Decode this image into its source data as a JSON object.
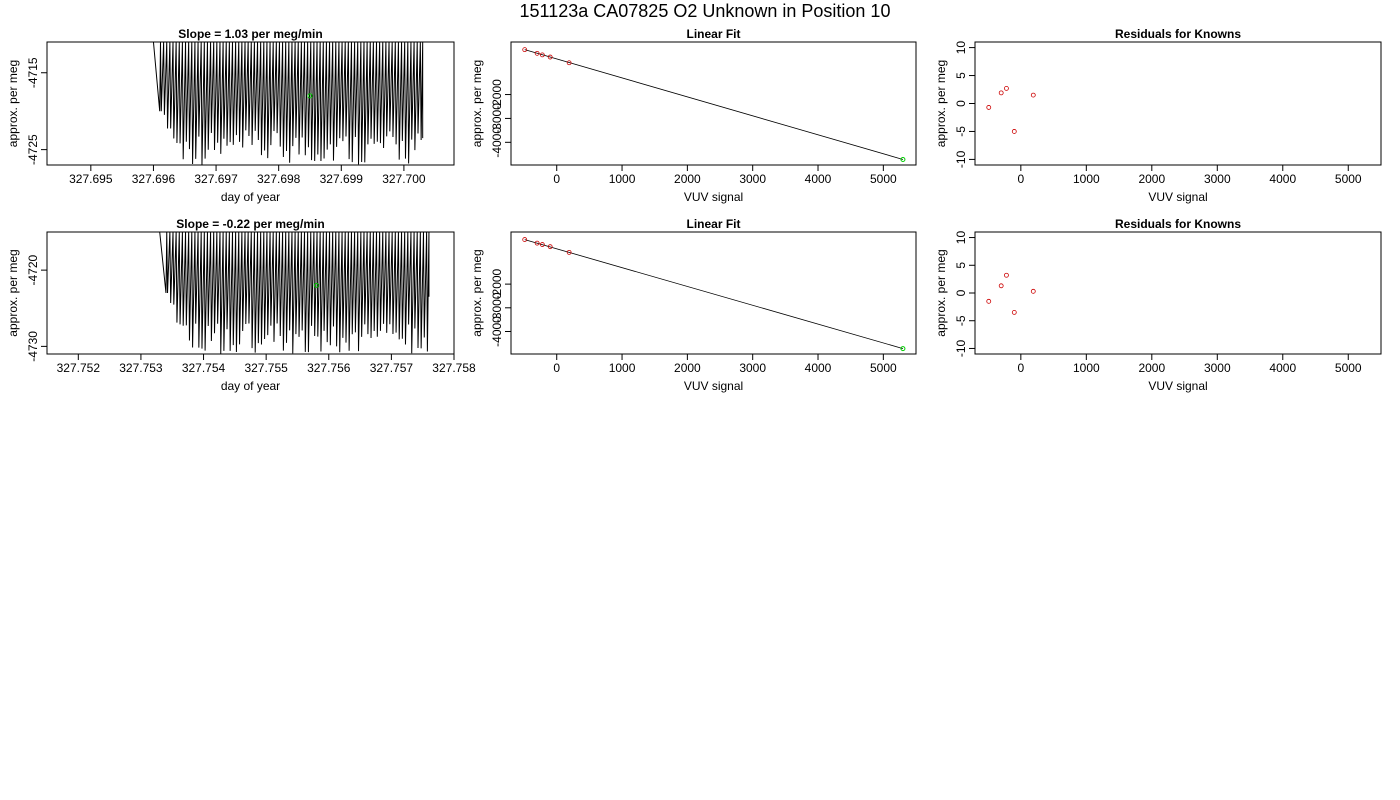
{
  "figure": {
    "title": "151123a     CA07825   O2 Unknown in Position  10"
  },
  "chart_data": [
    {
      "id": "row1-timeseries",
      "type": "line",
      "title": "Slope =  1.03  per meg/min",
      "xlabel": "day of year",
      "ylabel": "approx. per meg",
      "xlim": [
        327.6943,
        327.7008
      ],
      "ylim": [
        -4727,
        -4711
      ],
      "x_ticks": [
        327.695,
        327.696,
        327.697,
        327.698,
        327.699,
        327.7
      ],
      "x_tick_labels": [
        "327.695",
        "327.696",
        "327.697",
        "327.698",
        "327.699",
        "327.700"
      ],
      "y_ticks": [
        -4715,
        -4725
      ],
      "y_tick_labels": [
        "-4715",
        "-4725"
      ],
      "series": [
        {
          "kind": "oscillating",
          "x_start": 327.696,
          "x_end": 327.7003,
          "x_first_low": 327.6961,
          "y_top": -4711,
          "y_low_start": -4720,
          "y_low_range": [
            -4727,
            -4722.5
          ],
          "y_end": -4723.5,
          "cycles": 84
        }
      ],
      "highlight_point": {
        "x": 327.6985,
        "y": -4718
      },
      "colors": {
        "line": "#000000",
        "highlight": "#00cc00"
      }
    },
    {
      "id": "row1-linearfit",
      "type": "scatter",
      "title": "Linear Fit",
      "xlabel": "VUV signal",
      "ylabel": "approx. per meg",
      "xlim": [
        -700,
        5500
      ],
      "ylim": [
        -4950,
        200
      ],
      "x_ticks": [
        0,
        1000,
        2000,
        3000,
        4000,
        5000
      ],
      "x_tick_labels": [
        "0",
        "1000",
        "2000",
        "3000",
        "4000",
        "5000"
      ],
      "y_ticks": [
        -2000,
        -3000,
        -4000
      ],
      "y_tick_labels": [
        "-2000",
        "-3000",
        "-4000"
      ],
      "known_points": [
        {
          "x": -490,
          "y": -120
        },
        {
          "x": -300,
          "y": -275
        },
        {
          "x": -220,
          "y": -340
        },
        {
          "x": -100,
          "y": -430
        },
        {
          "x": 190,
          "y": -670
        }
      ],
      "unknown_point": {
        "x": 5300,
        "y": -4718
      },
      "fit_line": [
        [
          -490,
          -120
        ],
        [
          5300,
          -4718
        ]
      ],
      "colors": {
        "known": "#cc0000",
        "unknown": "#00cc00",
        "line": "#000000"
      }
    },
    {
      "id": "row1-residuals",
      "type": "scatter",
      "title": "Residuals for Knowns",
      "xlabel": "VUV signal",
      "ylabel": "approx. per meg",
      "xlim": [
        -700,
        5500
      ],
      "ylim": [
        -11,
        11
      ],
      "x_ticks": [
        0,
        1000,
        2000,
        3000,
        4000,
        5000
      ],
      "x_tick_labels": [
        "0",
        "1000",
        "2000",
        "3000",
        "4000",
        "5000"
      ],
      "y_ticks": [
        10,
        5,
        0,
        -5,
        -10
      ],
      "y_tick_labels": [
        "10",
        "5",
        "0",
        "-5",
        "-10"
      ],
      "points": [
        {
          "x": -490,
          "y": -0.7
        },
        {
          "x": -300,
          "y": 1.9
        },
        {
          "x": -220,
          "y": 2.7
        },
        {
          "x": -100,
          "y": -5.0
        },
        {
          "x": 190,
          "y": 1.5
        }
      ],
      "colors": {
        "points": "#cc0000"
      }
    },
    {
      "id": "row2-timeseries",
      "type": "line",
      "title": "Slope =  -0.22  per meg/min",
      "xlabel": "day of year",
      "ylabel": "approx. per meg",
      "xlim": [
        327.7515,
        327.758
      ],
      "ylim": [
        -4731,
        -4715
      ],
      "x_ticks": [
        327.752,
        327.753,
        327.754,
        327.755,
        327.756,
        327.757,
        327.758
      ],
      "x_tick_labels": [
        "327.752",
        "327.753",
        "327.754",
        "327.755",
        "327.756",
        "327.757",
        "327.758"
      ],
      "y_ticks": [
        -4720,
        -4730
      ],
      "y_tick_labels": [
        "-4720",
        "-4730"
      ],
      "series": [
        {
          "kind": "oscillating",
          "x_start": 327.7533,
          "x_end": 327.7576,
          "x_first_low": 327.7534,
          "y_top": -4715,
          "y_low_start": -4723,
          "y_low_range": [
            -4731,
            -4727
          ],
          "y_end": -4723.5,
          "cycles": 84
        }
      ],
      "highlight_point": {
        "x": 327.7558,
        "y": -4722
      },
      "colors": {
        "line": "#000000",
        "highlight": "#00cc00"
      }
    },
    {
      "id": "row2-linearfit",
      "type": "scatter",
      "title": "Linear Fit",
      "xlabel": "VUV signal",
      "ylabel": "approx. per meg",
      "xlim": [
        -700,
        5500
      ],
      "ylim": [
        -4950,
        200
      ],
      "x_ticks": [
        0,
        1000,
        2000,
        3000,
        4000,
        5000
      ],
      "x_tick_labels": [
        "0",
        "1000",
        "2000",
        "3000",
        "4000",
        "5000"
      ],
      "y_ticks": [
        -2000,
        -3000,
        -4000
      ],
      "y_tick_labels": [
        "-2000",
        "-3000",
        "-4000"
      ],
      "known_points": [
        {
          "x": -490,
          "y": -120
        },
        {
          "x": -300,
          "y": -270
        },
        {
          "x": -220,
          "y": -330
        },
        {
          "x": -100,
          "y": -420
        },
        {
          "x": 190,
          "y": -660
        }
      ],
      "unknown_point": {
        "x": 5300,
        "y": -4722
      },
      "fit_line": [
        [
          -490,
          -120
        ],
        [
          5300,
          -4722
        ]
      ],
      "colors": {
        "known": "#cc0000",
        "unknown": "#00cc00",
        "line": "#000000"
      }
    },
    {
      "id": "row2-residuals",
      "type": "scatter",
      "title": "Residuals for Knowns",
      "xlabel": "VUV signal",
      "ylabel": "approx. per meg",
      "xlim": [
        -700,
        5500
      ],
      "ylim": [
        -11,
        11
      ],
      "x_ticks": [
        0,
        1000,
        2000,
        3000,
        4000,
        5000
      ],
      "x_tick_labels": [
        "0",
        "1000",
        "2000",
        "3000",
        "4000",
        "5000"
      ],
      "y_ticks": [
        10,
        5,
        0,
        -5,
        -10
      ],
      "y_tick_labels": [
        "10",
        "5",
        "0",
        "-5",
        "-10"
      ],
      "points": [
        {
          "x": -490,
          "y": -1.5
        },
        {
          "x": -300,
          "y": 1.3
        },
        {
          "x": -220,
          "y": 3.2
        },
        {
          "x": -100,
          "y": -3.5
        },
        {
          "x": 190,
          "y": 0.3
        }
      ],
      "colors": {
        "points": "#cc0000"
      }
    }
  ]
}
